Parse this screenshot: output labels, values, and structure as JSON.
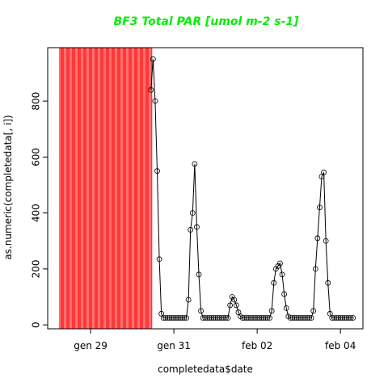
{
  "chart_data": {
    "type": "line",
    "title": "BF3 Total PAR [umol m-2 s-1]",
    "title_color": "#00ee00",
    "x_label": "completedata$date",
    "y_label": "as.numeric(completedata[, i])",
    "highlight": [
      28.24,
      30.48
    ],
    "highlight_color": "#ff4040",
    "series": [
      {
        "color": "#000000",
        "x": [
          30.45,
          30.5,
          30.55,
          30.6,
          30.65,
          30.7,
          30.75,
          30.8,
          30.85,
          30.9,
          30.95,
          31.0,
          31.05,
          31.1,
          31.15,
          31.2,
          31.25,
          31.3,
          31.35,
          31.4,
          31.45,
          31.5,
          31.55,
          31.6,
          31.65,
          31.7,
          31.75,
          31.8,
          31.85,
          31.9,
          31.95,
          32.0,
          32.05,
          32.1,
          32.15,
          32.2,
          32.25,
          32.3,
          32.35,
          32.4,
          32.45,
          32.5,
          32.55,
          32.6,
          32.65,
          32.7,
          32.75,
          32.8,
          32.85,
          32.9,
          32.95,
          33.0,
          33.05,
          33.1,
          33.15,
          33.2,
          33.25,
          33.3,
          33.35,
          33.4,
          33.45,
          33.5,
          33.55,
          33.6,
          33.65,
          33.7,
          33.75,
          33.8,
          33.85,
          33.9,
          33.95,
          34.0,
          34.05,
          34.1,
          34.15,
          34.2,
          34.25,
          34.3,
          34.35,
          34.4,
          34.45,
          34.5,
          34.55,
          34.6,
          34.65,
          34.7,
          34.75,
          34.8,
          34.85,
          34.9,
          34.95,
          35.0,
          35.05,
          35.1,
          35.15,
          35.2,
          35.25,
          35.3
        ],
        "values": [
          840,
          950,
          800,
          550,
          235,
          40,
          25,
          25,
          25,
          25,
          25,
          25,
          25,
          25,
          25,
          25,
          25,
          25,
          90,
          340,
          400,
          575,
          350,
          180,
          50,
          25,
          25,
          25,
          25,
          25,
          25,
          25,
          25,
          25,
          25,
          25,
          25,
          25,
          70,
          100,
          90,
          70,
          45,
          30,
          25,
          25,
          25,
          25,
          25,
          25,
          25,
          25,
          25,
          25,
          25,
          25,
          25,
          25,
          50,
          150,
          200,
          210,
          220,
          180,
          110,
          60,
          30,
          25,
          25,
          25,
          25,
          25,
          25,
          25,
          25,
          25,
          25,
          25,
          50,
          200,
          310,
          420,
          530,
          545,
          300,
          150,
          40,
          25,
          25,
          25,
          25,
          25,
          25,
          25,
          25,
          25,
          25,
          25
        ]
      }
    ],
    "xlim": [
      27.97,
      35.54
    ],
    "ylim": [
      -14,
      991
    ],
    "xticks": [
      {
        "value": 29,
        "label": "gen 29"
      },
      {
        "value": 31,
        "label": "gen 31"
      },
      {
        "value": 33,
        "label": "feb 02"
      },
      {
        "value": 35,
        "label": "feb 04"
      }
    ],
    "yticks": [
      0,
      200,
      400,
      600,
      800
    ]
  }
}
